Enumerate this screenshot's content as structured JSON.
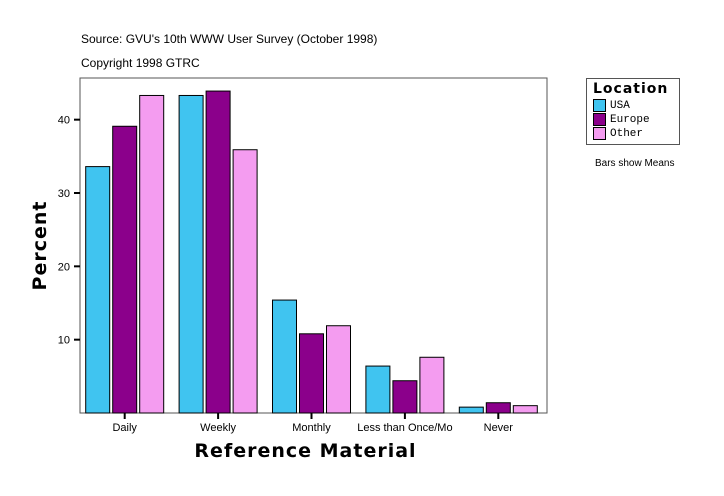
{
  "chart_data": {
    "type": "bar",
    "title": "Source: GVU's 10th WWW User Survey (October 1998)",
    "subtitle": "Copyright 1998 GTRC",
    "xlabel": "Reference Material",
    "ylabel": "Percent",
    "note": "Bars show Means",
    "categories": [
      "Daily",
      "Weekly",
      "Monthly",
      "Less than Once/Mo",
      "Never"
    ],
    "yticks": [
      10,
      20,
      30,
      40
    ],
    "ylim": [
      0,
      45
    ],
    "grid": false,
    "legend_title": "Location",
    "legend_placement": "right",
    "series": [
      {
        "name": "USA",
        "color": "#40C4F0",
        "values": [
          33.6,
          43.3,
          15.4,
          6.4,
          0.8
        ]
      },
      {
        "name": "Europe",
        "color": "#8B008B",
        "values": [
          39.1,
          43.9,
          10.8,
          4.4,
          1.4
        ]
      },
      {
        "name": "Other",
        "color": "#F49CF0",
        "values": [
          43.3,
          35.9,
          11.9,
          7.6,
          1.0
        ]
      }
    ]
  }
}
